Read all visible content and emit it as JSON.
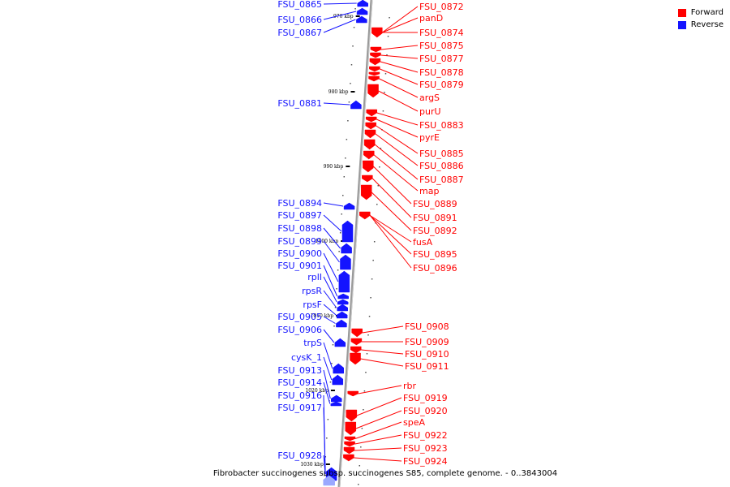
{
  "colors": {
    "forward": "#ff0000",
    "reverse": "#1414ff",
    "axis": "#999999",
    "tick": "#000000"
  },
  "legend": {
    "forward_label": "Forward",
    "reverse_label": "Reverse"
  },
  "caption": "Fibrobacter succinogenes subsp. succinogenes S85, complete genome. - 0..3843004",
  "scale_ticks": [
    "970 kbp",
    "980 kbp",
    "990 kbp",
    "1000 kbp",
    "1010 kbp",
    "1020 kbp",
    "1030 kbp"
  ],
  "reverse_genes": [
    "FSU_0865",
    "FSU_0866",
    "FSU_0867",
    "FSU_0881",
    "FSU_0894",
    "FSU_0897",
    "FSU_0898",
    "FSU_0899",
    "FSU_0900",
    "FSU_0901",
    "rplI",
    "rpsR",
    "rpsF",
    "FSU_0905",
    "FSU_0906",
    "trpS",
    "cysK_1",
    "FSU_0913",
    "FSU_0914",
    "FSU_0916",
    "FSU_0917",
    "FSU_0928"
  ],
  "forward_genes": [
    "FSU_0872",
    "panD",
    "FSU_0874",
    "FSU_0875",
    "FSU_0877",
    "FSU_0878",
    "FSU_0879",
    "argS",
    "purU",
    "FSU_0883",
    "pyrE",
    "FSU_0885",
    "FSU_0886",
    "FSU_0887",
    "map",
    "FSU_0889",
    "FSU_0891",
    "FSU_0892",
    "fusA",
    "FSU_0895",
    "FSU_0896",
    "FSU_0908",
    "FSU_0909",
    "FSU_0910",
    "FSU_0911",
    "rbr",
    "FSU_0919",
    "FSU_0920",
    "speA",
    "FSU_0922",
    "FSU_0923",
    "FSU_0924"
  ]
}
